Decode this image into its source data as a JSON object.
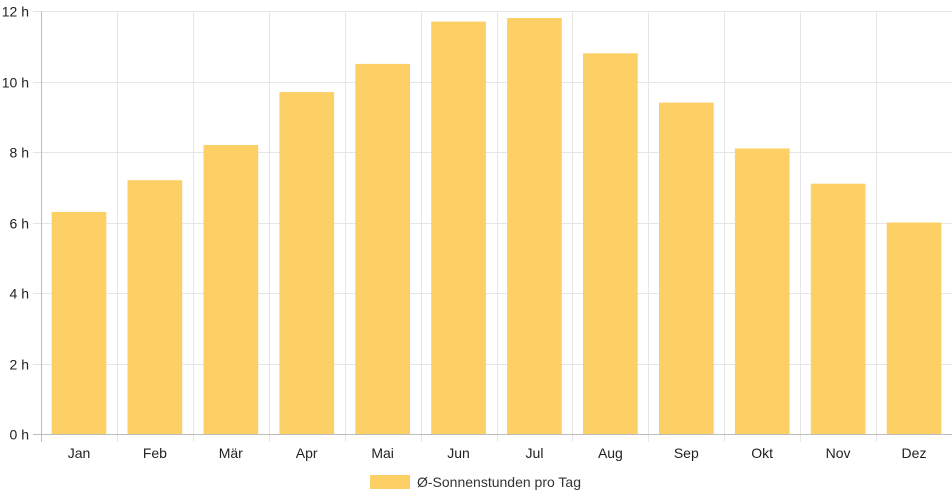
{
  "chart_data": {
    "type": "bar",
    "categories": [
      "Jan",
      "Feb",
      "Mär",
      "Apr",
      "Mai",
      "Jun",
      "Jul",
      "Aug",
      "Sep",
      "Okt",
      "Nov",
      "Dez"
    ],
    "series": [
      {
        "name": "Ø-Sonnenstunden pro Tag",
        "values": [
          6.3,
          7.2,
          8.2,
          9.7,
          10.5,
          11.7,
          11.8,
          10.8,
          9.4,
          8.1,
          7.1,
          6.0
        ],
        "color": "#fdd066"
      }
    ],
    "title": "",
    "xlabel": "",
    "ylabel": "",
    "ylim": [
      0,
      12
    ],
    "yticks": [
      0,
      2,
      4,
      6,
      8,
      10,
      12
    ],
    "ytick_suffix": " h",
    "grid": true,
    "legend_position": "bottom"
  },
  "colors": {
    "bar": "#fdd066",
    "grid": "#e6e6e6",
    "axis": "#bdbdbd"
  }
}
